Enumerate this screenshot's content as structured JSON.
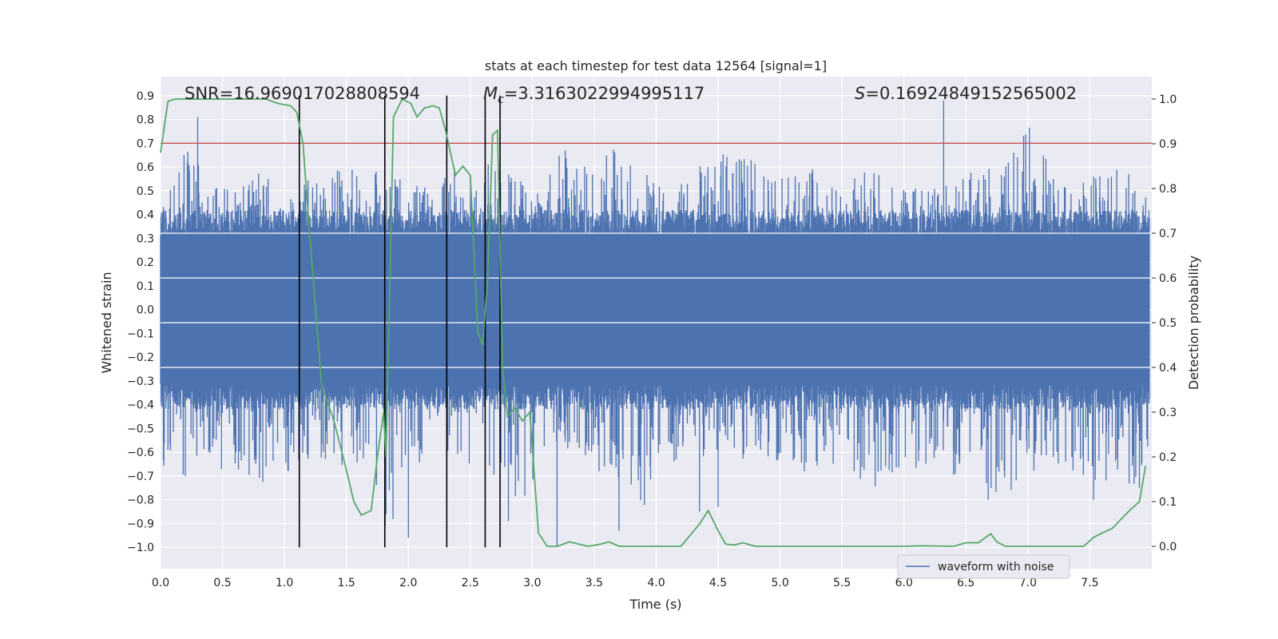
{
  "chart_data": {
    "type": "line",
    "title": "stats at each timestep for test data 12564 [signal=1]",
    "xlabel": "Time (s)",
    "ylabel": "Whitened strain",
    "ylabel_right": "Detection probability",
    "xlim": [
      0.0,
      8.0
    ],
    "ylim": [
      -1.09,
      0.98
    ],
    "ylim_right": [
      -0.05,
      1.05
    ],
    "x_ticks": [
      "0.0",
      "0.5",
      "1.0",
      "1.5",
      "2.0",
      "2.5",
      "3.0",
      "3.5",
      "4.0",
      "4.5",
      "5.0",
      "5.5",
      "6.0",
      "6.5",
      "7.0",
      "7.5"
    ],
    "y_ticks": [
      "0.9",
      "0.8",
      "0.7",
      "0.6",
      "0.5",
      "0.4",
      "0.3",
      "0.2",
      "0.1",
      "0.0",
      "−0.1",
      "−0.2",
      "−0.3",
      "−0.4",
      "−0.5",
      "−0.6",
      "−0.7",
      "−0.8",
      "−0.9",
      "−1.0"
    ],
    "y_ticks_right": [
      "1.0",
      "0.9",
      "0.8",
      "0.7",
      "0.6",
      "0.5",
      "0.4",
      "0.3",
      "0.2",
      "0.1",
      "0.0"
    ],
    "grid": true,
    "legend": {
      "position": "lower-right",
      "entries": [
        "waveform with noise"
      ]
    },
    "annotations": {
      "snr": "SNR=16.969017028808594",
      "mc_symbol": "M",
      "mc_sub": "c",
      "mc_value": "=3.3163022994995117",
      "s_symbol": "S",
      "s_value": "=0.16924849152565002"
    },
    "threshold": {
      "value": 0.7,
      "color": "#c44e52"
    },
    "vertical_lines": [
      1.12,
      1.81,
      2.31,
      2.62,
      2.74
    ],
    "series": [
      {
        "name": "waveform with noise",
        "color": "#4c72b0",
        "axis": "left",
        "description": "dense noisy strain samples, roughly symmetric in [-0.45, 0.45] with spikes up to ~0.9 and down to ~-1.0",
        "envelope_upper": [
          0.4,
          0.68,
          0.55,
          0.5,
          0.62,
          0.45,
          0.6,
          0.6,
          0.58,
          0.6,
          0.52,
          0.55,
          0.7,
          0.7,
          0.56,
          0.5,
          0.72,
          0.62,
          0.7,
          0.6,
          0.55,
          0.6,
          0.65,
          0.7,
          0.58,
          0.58,
          0.6,
          0.55,
          0.6,
          0.5,
          0.55,
          0.55,
          0.6,
          0.6,
          0.88,
          0.6,
          0.6,
          0.58,
          0.6,
          0.45
        ],
        "envelope_lower": [
          -0.65,
          -0.7,
          -0.72,
          -0.7,
          -0.73,
          -0.7,
          -0.62,
          -0.65,
          -0.72,
          -0.96,
          -0.7,
          -0.6,
          -0.65,
          -0.7,
          -0.98,
          -0.65,
          -0.6,
          -0.66,
          -0.75,
          -0.84,
          -0.66,
          -0.62,
          -0.62,
          -0.65,
          -0.62,
          -0.7,
          -0.65,
          -0.7,
          -0.75,
          -0.72,
          -0.7,
          -0.7,
          -0.7,
          -0.8,
          -0.72,
          -0.68,
          -0.7,
          -0.8,
          -0.75,
          -0.7
        ],
        "spikes": [
          [
            2.0,
            -0.96
          ],
          [
            3.2,
            -1.0
          ],
          [
            3.7,
            -0.93
          ],
          [
            4.35,
            -0.85
          ],
          [
            4.5,
            -0.83
          ],
          [
            6.32,
            0.88
          ],
          [
            6.68,
            -0.8
          ],
          [
            7.53,
            -0.8
          ],
          [
            7.9,
            -0.75
          ],
          [
            0.2,
            -0.7
          ],
          [
            0.3,
            0.81
          ]
        ]
      },
      {
        "name": "detection probability",
        "color": "#55a868",
        "axis": "right",
        "x": [
          0.0,
          0.06,
          0.12,
          0.2,
          0.3,
          0.5,
          0.7,
          0.85,
          0.95,
          1.05,
          1.1,
          1.15,
          1.2,
          1.3,
          1.4,
          1.5,
          1.56,
          1.62,
          1.7,
          1.75,
          1.8,
          1.82,
          1.88,
          1.95,
          2.02,
          2.07,
          2.13,
          2.2,
          2.25,
          2.3,
          2.38,
          2.44,
          2.5,
          2.56,
          2.6,
          2.64,
          2.68,
          2.72,
          2.76,
          2.8,
          2.86,
          2.92,
          2.98,
          3.05,
          3.12,
          3.2,
          3.3,
          3.45,
          3.55,
          3.62,
          3.7,
          3.85,
          4.0,
          4.2,
          4.35,
          4.42,
          4.5,
          4.56,
          4.63,
          4.7,
          4.8,
          4.95,
          5.5,
          6.0,
          6.15,
          6.4,
          6.5,
          6.6,
          6.7,
          6.75,
          6.82,
          7.0,
          7.3,
          7.45,
          7.53,
          7.6,
          7.68,
          7.75,
          7.82,
          7.9,
          7.95
        ],
        "y": [
          0.88,
          0.995,
          1.0,
          1.0,
          1.0,
          1.0,
          1.0,
          1.0,
          0.99,
          0.985,
          0.97,
          0.9,
          0.71,
          0.36,
          0.28,
          0.17,
          0.1,
          0.07,
          0.08,
          0.2,
          0.3,
          0.2,
          0.96,
          1.0,
          0.99,
          0.96,
          0.98,
          0.985,
          0.98,
          0.93,
          0.83,
          0.85,
          0.83,
          0.48,
          0.45,
          0.6,
          0.92,
          0.93,
          0.4,
          0.29,
          0.31,
          0.28,
          0.3,
          0.03,
          0.0,
          0.0,
          0.01,
          0.0,
          0.005,
          0.01,
          0.0,
          0.0,
          0.0,
          0.0,
          0.05,
          0.08,
          0.035,
          0.005,
          0.003,
          0.008,
          0.0,
          0.0,
          0.0,
          0.0,
          0.001,
          0.0,
          0.008,
          0.008,
          0.028,
          0.01,
          0.0,
          0.0,
          0.0,
          0.0,
          0.02,
          0.03,
          0.04,
          0.06,
          0.08,
          0.1,
          0.18
        ]
      }
    ]
  }
}
